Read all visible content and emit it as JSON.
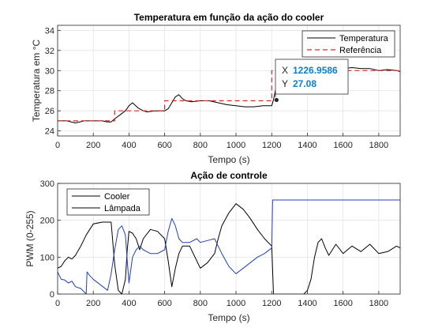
{
  "chart_data": [
    {
      "type": "line",
      "title": "Temperatura em função da ação do cooler",
      "xlabel": "Tempo (s)",
      "ylabel": "Temperatura em °C",
      "xlim": [
        0,
        1920
      ],
      "ylim": [
        23.5,
        34.5
      ],
      "xticks": [
        0,
        200,
        400,
        600,
        800,
        1000,
        1200,
        1400,
        1600,
        1800
      ],
      "yticks": [
        24,
        26,
        28,
        30,
        32,
        34
      ],
      "grid": true,
      "legend": "top-right",
      "series": [
        {
          "name": "Temperatura",
          "color": "#000000",
          "style": "solid",
          "x": [
            0,
            50,
            100,
            150,
            200,
            250,
            280,
            300,
            320,
            350,
            380,
            400,
            420,
            450,
            480,
            500,
            550,
            600,
            620,
            640,
            660,
            680,
            700,
            720,
            750,
            800,
            850,
            900,
            950,
            1000,
            1050,
            1100,
            1150,
            1200,
            1210,
            1230,
            1260,
            1300,
            1340,
            1380,
            1420,
            1460,
            1500,
            1540,
            1580,
            1600,
            1650,
            1700,
            1750,
            1800,
            1850,
            1900,
            1920
          ],
          "y": [
            25.0,
            25.0,
            24.8,
            25.0,
            25.0,
            25.0,
            24.9,
            24.9,
            25.2,
            25.6,
            26.0,
            26.5,
            26.8,
            26.3,
            26.0,
            25.9,
            26.0,
            26.0,
            26.2,
            26.8,
            27.4,
            27.6,
            27.2,
            27.0,
            26.9,
            27.0,
            27.0,
            26.8,
            26.6,
            26.5,
            26.4,
            26.4,
            26.5,
            26.5,
            27.1,
            28.8,
            29.4,
            29.5,
            29.5,
            29.4,
            29.5,
            29.6,
            29.6,
            29.6,
            29.7,
            30.2,
            30.3,
            30.2,
            30.2,
            30.0,
            30.1,
            30.0,
            29.9
          ]
        },
        {
          "name": "Referência",
          "color": "#d62728",
          "style": "dashed",
          "x": [
            0,
            320,
            320,
            600,
            600,
            1200,
            1200,
            1920
          ],
          "y": [
            25,
            25,
            26,
            26,
            27,
            27,
            30,
            30
          ]
        }
      ],
      "datatip": {
        "x_label": "X",
        "x_value": "1226.9586",
        "y_label": "Y",
        "y_value": "27.08",
        "x": 1226.9586,
        "y": 27.08
      }
    },
    {
      "type": "line",
      "title": "Ação de controle",
      "xlabel": "Tempo (s)",
      "ylabel": "PWM (0-255)",
      "xlim": [
        0,
        1920
      ],
      "ylim": [
        0,
        300
      ],
      "xticks": [
        0,
        200,
        400,
        600,
        800,
        1000,
        1200,
        1400,
        1600,
        1800
      ],
      "yticks": [
        0,
        100,
        200,
        300
      ],
      "grid": true,
      "legend": "top-left",
      "series": [
        {
          "name": "Cooler",
          "color": "#000000",
          "style": "solid",
          "x": [
            0,
            20,
            40,
            60,
            80,
            100,
            130,
            160,
            200,
            250,
            300,
            320,
            340,
            360,
            380,
            390,
            400,
            420,
            440,
            460,
            480,
            520,
            560,
            600,
            620,
            640,
            660,
            680,
            700,
            740,
            780,
            800,
            840,
            880,
            900,
            920,
            960,
            1000,
            1040,
            1080,
            1120,
            1160,
            1200,
            1210,
            1220,
            1240,
            1300,
            1380,
            1400,
            1420,
            1440,
            1460,
            1480,
            1500,
            1520,
            1540,
            1560,
            1600,
            1650,
            1700,
            1750,
            1800,
            1850,
            1900,
            1920
          ],
          "y": [
            70,
            75,
            90,
            100,
            95,
            105,
            130,
            160,
            190,
            195,
            195,
            80,
            10,
            0,
            40,
            120,
            170,
            165,
            150,
            120,
            150,
            175,
            170,
            150,
            90,
            20,
            70,
            110,
            130,
            130,
            90,
            70,
            85,
            110,
            150,
            185,
            220,
            245,
            230,
            205,
            175,
            150,
            130,
            0,
            0,
            0,
            0,
            0,
            10,
            40,
            100,
            140,
            150,
            125,
            105,
            120,
            135,
            110,
            130,
            115,
            135,
            110,
            115,
            130,
            125
          ]
        },
        {
          "name": "Lâmpada",
          "color": "#1f3fbf",
          "style": "solid",
          "x": [
            0,
            20,
            40,
            60,
            80,
            100,
            130,
            160,
            165,
            180,
            200,
            240,
            280,
            300,
            320,
            340,
            360,
            380,
            390,
            400,
            420,
            440,
            460,
            480,
            520,
            560,
            600,
            620,
            640,
            660,
            680,
            700,
            740,
            780,
            800,
            840,
            880,
            900,
            920,
            960,
            1000,
            1040,
            1080,
            1120,
            1160,
            1200,
            1205,
            1920
          ],
          "y": [
            60,
            40,
            38,
            30,
            35,
            20,
            15,
            0,
            60,
            50,
            40,
            25,
            10,
            55,
            120,
            175,
            185,
            160,
            90,
            30,
            100,
            120,
            130,
            120,
            110,
            110,
            120,
            170,
            205,
            185,
            150,
            140,
            140,
            150,
            140,
            145,
            150,
            130,
            110,
            75,
            55,
            70,
            85,
            100,
            110,
            125,
            255,
            255
          ]
        }
      ]
    }
  ]
}
